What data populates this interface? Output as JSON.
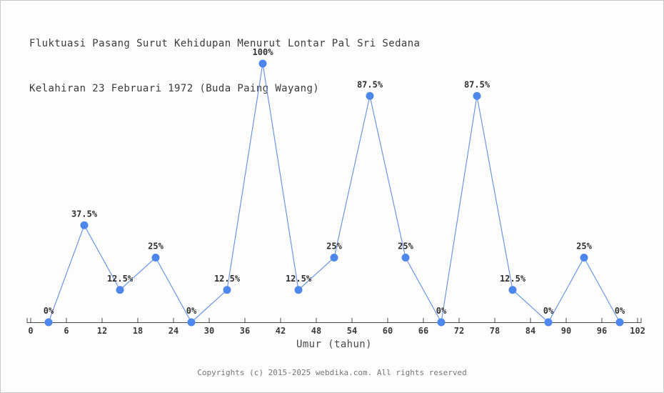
{
  "header": {
    "title_line1": "Fluktuasi Pasang Surut Kehidupan Menurut Lontar Pal Sri Sedana",
    "title_line2": "Kelahiran 23 Februari 1972 (Buda Paing Wayang)"
  },
  "chart_data": {
    "type": "line",
    "title": "Fluktuasi Pasang Surut Kehidupan Menurut Lontar Pal Sri Sedana Kelahiran 23 Februari 1972 (Buda Paing Wayang)",
    "x": [
      3,
      9,
      15,
      21,
      27,
      33,
      39,
      45,
      51,
      57,
      63,
      69,
      75,
      81,
      87,
      93,
      99
    ],
    "values": [
      0,
      37.5,
      12.5,
      25,
      0,
      12.5,
      100,
      12.5,
      25,
      87.5,
      25,
      0,
      87.5,
      12.5,
      0,
      25,
      0
    ],
    "point_labels": [
      "0%",
      "37.5%",
      "12.5%",
      "25%",
      "0%",
      "12.5%",
      "100%",
      "12.5%",
      "25%",
      "87.5%",
      "25%",
      "0%",
      "87.5%",
      "12.5%",
      "0%",
      "25%",
      "0%"
    ],
    "x_ticks": [
      0,
      6,
      12,
      18,
      24,
      30,
      36,
      42,
      48,
      54,
      60,
      66,
      72,
      78,
      84,
      90,
      96,
      102
    ],
    "xlabel": "Umur (tahun)",
    "ylabel": "",
    "xlim": [
      0,
      102
    ],
    "ylim": [
      0,
      100
    ],
    "grid": false,
    "legend": "none",
    "colors": {
      "line": "#6b96e8",
      "marker": "#4d86ec",
      "axis": "#4a4a4a",
      "tick_text": "#3a3a3a",
      "point_label_text": "#2f2f2f"
    }
  },
  "footer": {
    "copyright": "Copyrights (c) 2015-2025 webdika.com. All rights reserved"
  },
  "colors": {
    "background": "#fdfdfd",
    "frame_border": "#c9c9c9",
    "title_text": "#3a3a3a",
    "footer_text": "#767676"
  }
}
